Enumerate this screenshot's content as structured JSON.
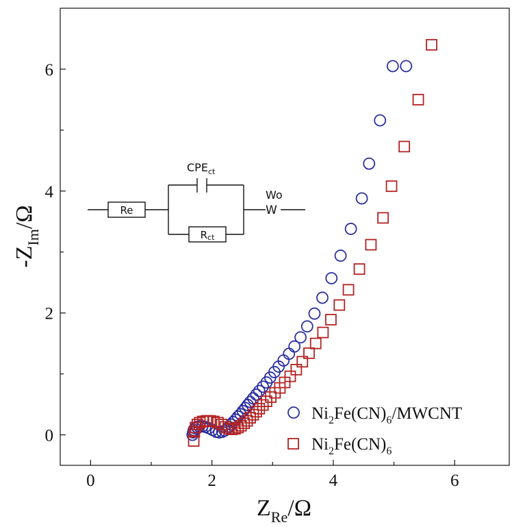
{
  "chart_data": {
    "type": "scatter",
    "xlabel": {
      "main": "Z",
      "sub": "Re",
      "unit": "/Ω"
    },
    "ylabel": {
      "main": "-Z",
      "sub": "Im",
      "unit": "/Ω"
    },
    "xlim": [
      -0.5,
      6.9
    ],
    "ylim": [
      -0.5,
      7.0
    ],
    "xticks": [
      0,
      2,
      4,
      6
    ],
    "yticks": [
      0,
      2,
      4,
      6
    ],
    "legend_position": "bottom-right",
    "series": [
      {
        "name": "Ni2Fe(CN)6/MWCNT",
        "legend_parts": [
          "Ni",
          "2",
          "Fe(CN)",
          "6",
          "/MWCNT"
        ],
        "marker": "circle",
        "color": "#2b2f9e",
        "x": [
          1.68,
          1.69,
          1.7,
          1.72,
          1.75,
          1.79,
          1.84,
          1.89,
          1.95,
          2.01,
          2.07,
          2.12,
          2.17,
          2.21,
          2.25,
          2.28,
          2.32,
          2.35,
          2.39,
          2.43,
          2.47,
          2.51,
          2.55,
          2.59,
          2.63,
          2.68,
          2.73,
          2.78,
          2.84,
          2.9,
          2.96,
          3.03,
          3.1,
          3.18,
          3.27,
          3.36,
          3.46,
          3.57,
          3.69,
          3.82,
          3.97,
          4.12,
          4.29,
          4.47,
          4.59,
          4.77,
          4.98,
          5.2
        ],
        "y": [
          0.0,
          0.04,
          0.08,
          0.11,
          0.13,
          0.14,
          0.14,
          0.13,
          0.11,
          0.08,
          0.05,
          0.04,
          0.05,
          0.07,
          0.1,
          0.13,
          0.17,
          0.21,
          0.25,
          0.3,
          0.34,
          0.39,
          0.44,
          0.49,
          0.54,
          0.6,
          0.66,
          0.72,
          0.79,
          0.86,
          0.94,
          1.03,
          1.12,
          1.22,
          1.33,
          1.45,
          1.6,
          1.78,
          1.99,
          2.25,
          2.57,
          2.94,
          3.38,
          3.88,
          4.45,
          5.16,
          6.05,
          6.05
        ]
      },
      {
        "name": "Ni2Fe(CN)6",
        "legend_parts": [
          "Ni",
          "2",
          "Fe(CN)",
          "6",
          ""
        ],
        "marker": "square",
        "color": "#b22222",
        "x": [
          1.7,
          1.71,
          1.73,
          1.76,
          1.8,
          1.85,
          1.91,
          1.97,
          2.03,
          2.1,
          2.16,
          2.22,
          2.28,
          2.33,
          2.38,
          2.43,
          2.48,
          2.53,
          2.58,
          2.63,
          2.68,
          2.73,
          2.78,
          2.84,
          2.9,
          2.97,
          3.04,
          3.12,
          3.2,
          3.29,
          3.39,
          3.49,
          3.6,
          3.71,
          3.83,
          3.96,
          4.1,
          4.25,
          4.43,
          4.62,
          4.82,
          4.96,
          5.17,
          5.4,
          5.62
        ],
        "y": [
          -0.1,
          0.05,
          0.12,
          0.17,
          0.2,
          0.22,
          0.23,
          0.23,
          0.22,
          0.2,
          0.17,
          0.13,
          0.1,
          0.09,
          0.1,
          0.12,
          0.15,
          0.19,
          0.23,
          0.28,
          0.33,
          0.38,
          0.43,
          0.49,
          0.55,
          0.62,
          0.69,
          0.77,
          0.86,
          0.96,
          1.07,
          1.2,
          1.34,
          1.5,
          1.68,
          1.89,
          2.13,
          2.38,
          2.72,
          3.12,
          3.56,
          4.08,
          4.73,
          5.5,
          6.4
        ]
      }
    ]
  },
  "circuit": {
    "re_label": "Re",
    "rct_main": "R",
    "rct_sub": "ct",
    "cpe_main": "CPE",
    "cpe_sub": "ct",
    "wo_label": "Wo",
    "w_symbol": "W"
  }
}
